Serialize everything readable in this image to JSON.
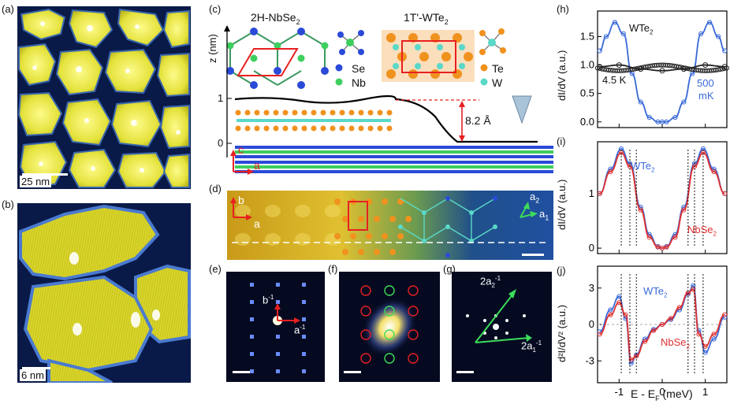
{
  "panels": {
    "a": "(a)",
    "b": "(b)",
    "c": "(c)",
    "d": "(d)",
    "e": "(e)",
    "f": "(f)",
    "g": "(g)",
    "h": "(h)",
    "i": "(i)",
    "j": "(j)"
  },
  "scalebars": {
    "a": "25 nm",
    "b": "6 nm"
  },
  "panel_c": {
    "title_left": "2H-NbSe",
    "title_left_sub": "2",
    "title_right": "1T'-WTe",
    "title_right_sub": "2",
    "legend_se": "Se",
    "legend_nb": "Nb",
    "legend_te": "Te",
    "legend_w": "W",
    "ylabel": "z (nm)",
    "ticks": [
      "1",
      "0"
    ],
    "step_height": "8.2 Å",
    "axis_c": "c",
    "axis_a": "a"
  },
  "panel_d": {
    "axis_b": "b",
    "axis_a": "a",
    "axis_a1": "a",
    "axis_a1_sub": "1",
    "axis_a2": "a",
    "axis_a2_sub": "2"
  },
  "panel_e": {
    "b_inv": "b",
    "a_inv": "a",
    "sup": "-1"
  },
  "panel_g": {
    "a1_inv": "2a",
    "a2_inv": "2a",
    "sub1": "1",
    "sub2": "2",
    "sup": "-1"
  },
  "colors": {
    "se": "#2a4ad8",
    "nb": "#3dcf5e",
    "te": "#f0921e",
    "w": "#5ad8c8",
    "wte2": "#3a6ad8",
    "nbse2": "#e03030"
  },
  "chart_data": [
    {
      "type": "line",
      "panel": "h",
      "ylabel": "dI/dV (a.u.)",
      "yticks": [
        "1.5",
        "1.0",
        "0.5",
        "0.0"
      ],
      "ylim": [
        -0.1,
        1.95
      ],
      "xlim": [
        -1.5,
        1.5
      ],
      "series": [
        {
          "name": "500 mK",
          "x": [
            -1.45,
            -1.3,
            -1.1,
            -0.9,
            -0.7,
            -0.5,
            -0.3,
            -0.1,
            0,
            0.1,
            0.3,
            0.5,
            0.7,
            0.9,
            1.1,
            1.3,
            1.45
          ],
          "values": [
            1.25,
            1.5,
            1.75,
            1.55,
            0.85,
            0.35,
            0.08,
            0.0,
            0.0,
            0.0,
            0.08,
            0.35,
            0.85,
            1.55,
            1.75,
            1.5,
            1.25
          ]
        },
        {
          "name": "4.5 K",
          "x": [
            -1.45,
            -1.0,
            -0.5,
            0,
            0.5,
            1.0,
            1.45
          ],
          "values": [
            0.97,
            1.0,
            0.93,
            0.9,
            0.93,
            1.0,
            0.97
          ]
        }
      ],
      "annotations": [
        "WTe",
        "4.5 K",
        "500",
        "mK"
      ]
    },
    {
      "type": "line",
      "panel": "i",
      "ylabel": "dI/dV (a.u.)",
      "yticks": [
        "1",
        "0"
      ],
      "ylim": [
        -0.1,
        1.95
      ],
      "xlim": [
        -1.5,
        1.5
      ],
      "series": [
        {
          "name": "WTe2",
          "x": [
            -1.45,
            -1.2,
            -0.95,
            -0.75,
            -0.5,
            -0.3,
            -0.1,
            0,
            0.1,
            0.3,
            0.5,
            0.75,
            0.95,
            1.2,
            1.45
          ],
          "values": [
            1.0,
            1.45,
            1.82,
            1.55,
            0.75,
            0.25,
            0.03,
            0.0,
            0.03,
            0.25,
            0.75,
            1.55,
            1.82,
            1.45,
            1.0
          ]
        },
        {
          "name": "NbSe2",
          "x": [
            -1.45,
            -1.2,
            -0.95,
            -0.75,
            -0.5,
            -0.3,
            -0.1,
            0,
            0.1,
            0.3,
            0.5,
            0.75,
            0.95,
            1.2,
            1.45
          ],
          "values": [
            1.0,
            1.4,
            1.75,
            1.5,
            0.7,
            0.2,
            0.02,
            0.0,
            0.02,
            0.2,
            0.7,
            1.5,
            1.75,
            1.4,
            1.0
          ]
        }
      ],
      "annotations": [
        "WTe",
        "NbSe"
      ]
    },
    {
      "type": "line",
      "panel": "j",
      "ylabel": "d²I/dV² (a.u.)",
      "xlabel": "E - E",
      "xlabel_sub": "F",
      "xlabel_unit": " (meV)",
      "yticks": [
        "3",
        "0",
        "-3"
      ],
      "xticks": [
        "-1",
        "0",
        "1"
      ],
      "ylim": [
        -4.8,
        4.8
      ],
      "xlim": [
        -1.5,
        1.5
      ],
      "series": [
        {
          "name": "WTe2",
          "x": [
            -1.45,
            -1.2,
            -1.0,
            -0.85,
            -0.72,
            -0.6,
            -0.4,
            -0.2,
            0,
            0.2,
            0.4,
            0.6,
            0.72,
            0.85,
            1.0,
            1.2,
            1.45
          ],
          "values": [
            -0.6,
            1.2,
            2.3,
            0.5,
            -3.2,
            -2.5,
            -1.2,
            -0.4,
            0,
            0.4,
            1.2,
            2.5,
            3.2,
            -0.5,
            -2.3,
            -1.2,
            0.6
          ]
        },
        {
          "name": "NbSe2",
          "x": [
            -1.45,
            -1.2,
            -1.0,
            -0.85,
            -0.72,
            -0.6,
            -0.4,
            -0.2,
            0,
            0.2,
            0.4,
            0.6,
            0.72,
            0.85,
            1.0,
            1.2,
            1.45
          ],
          "values": [
            -0.8,
            0.8,
            1.8,
            0.8,
            -2.9,
            -2.6,
            -1.4,
            -0.5,
            0,
            0.5,
            1.4,
            2.6,
            2.9,
            -0.8,
            -1.8,
            -0.8,
            0.8
          ]
        }
      ],
      "annotations": [
        "WTe",
        "NbSe"
      ]
    }
  ]
}
